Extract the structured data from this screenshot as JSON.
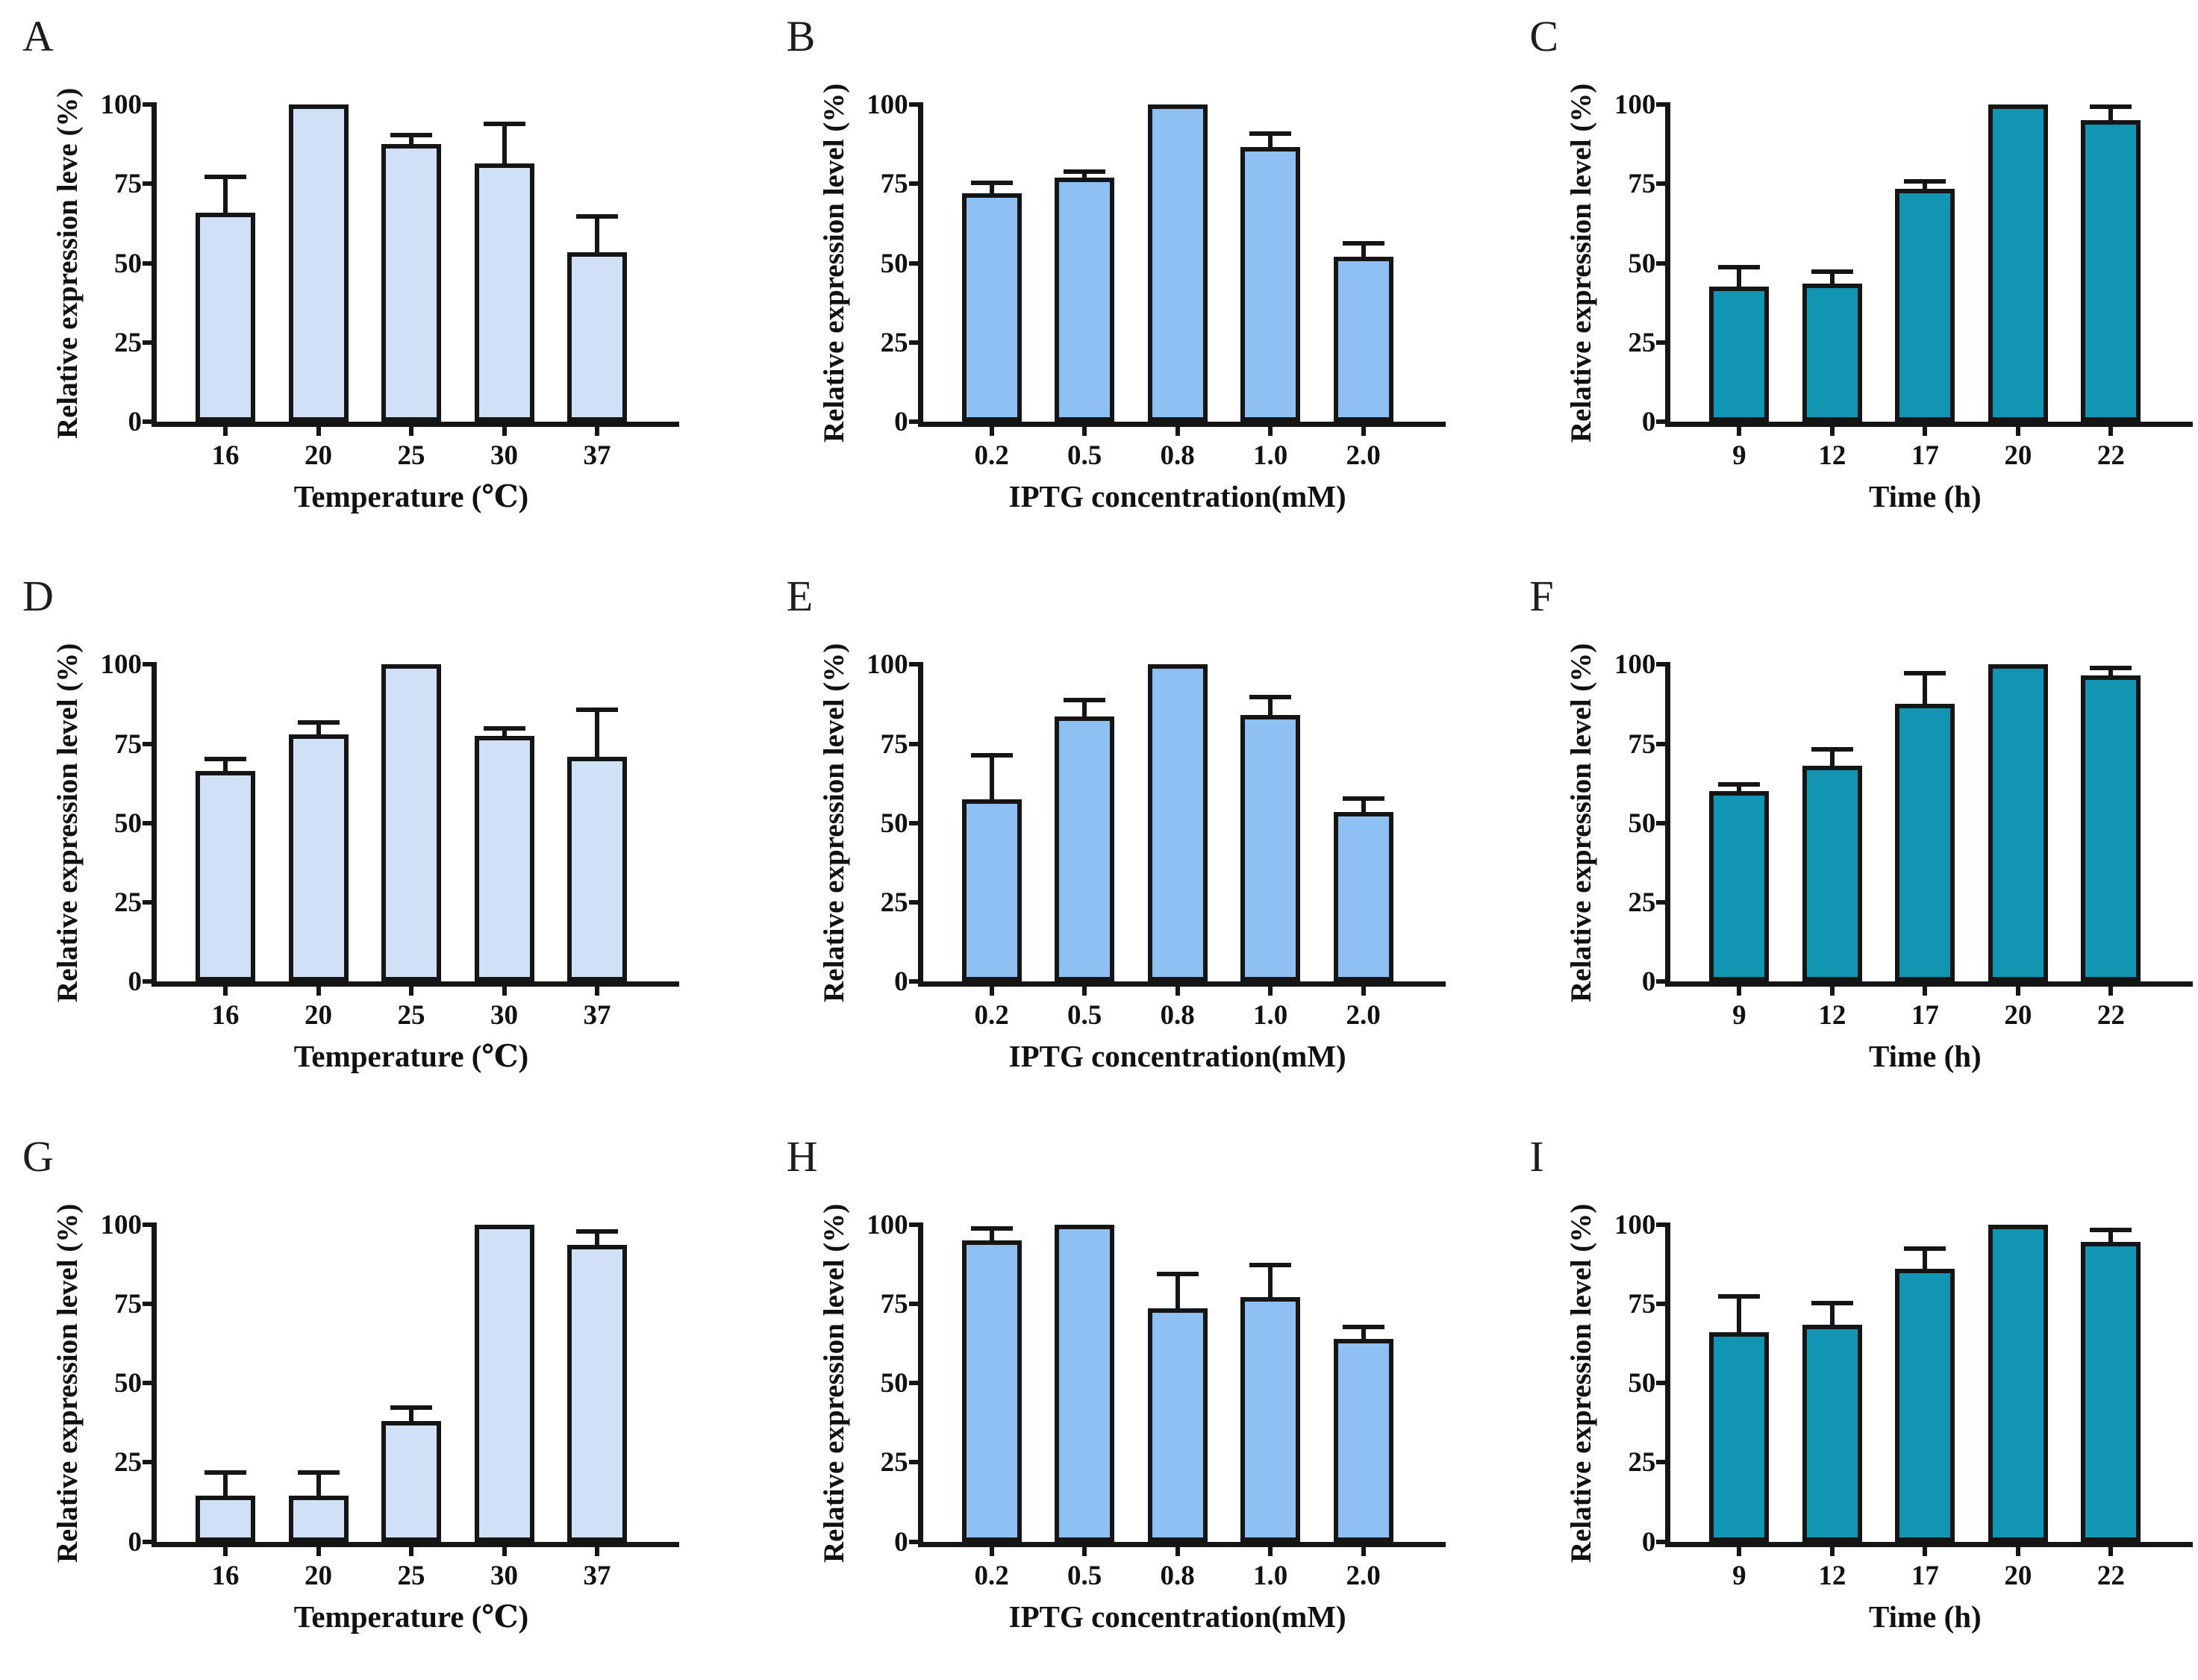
{
  "figure": {
    "rows": 3,
    "cols": 3,
    "panel_letters": [
      "A",
      "B",
      "C",
      "D",
      "E",
      "F",
      "G",
      "H",
      "I"
    ]
  },
  "colors": {
    "bar_light_blue": "#cfe0f7",
    "bar_blue": "#8ec0f4",
    "bar_teal": "#1295b3",
    "axis_and_outline": "#151515",
    "background": "#ffffff"
  },
  "chart_data": [
    {
      "type": "bar",
      "panel_label": "A",
      "ylabel": "Relative expression leve (%)",
      "xlabel": "Temperature (℃)",
      "categories": [
        "16",
        "20",
        "25",
        "30",
        "37"
      ],
      "values": [
        66,
        100,
        87.5,
        81.5,
        53.5
      ],
      "errors": [
        12,
        0,
        3.5,
        13,
        12
      ],
      "ylim": [
        0,
        100
      ],
      "yticks": [
        0,
        25,
        50,
        75,
        100
      ],
      "grid": false,
      "legend": null,
      "bar_color": "#cfe0f7",
      "bar_border": "#151515"
    },
    {
      "type": "bar",
      "panel_label": "B",
      "ylabel": "Relative expression level (%)",
      "xlabel": "IPTG concentration(mM)",
      "categories": [
        "0.2",
        "0.5",
        "0.8",
        "1.0",
        "2.0"
      ],
      "values": [
        72,
        77,
        100,
        86.5,
        52
      ],
      "errors": [
        4,
        2.5,
        0,
        5,
        5
      ],
      "ylim": [
        0,
        100
      ],
      "yticks": [
        0,
        25,
        50,
        75,
        100
      ],
      "grid": false,
      "legend": null,
      "bar_color": "#8ec0f4",
      "bar_border": "#151515"
    },
    {
      "type": "bar",
      "panel_label": "C",
      "ylabel": "Relative expression level (%)",
      "xlabel": "Time (h)",
      "categories": [
        "9",
        "12",
        "17",
        "20",
        "22"
      ],
      "values": [
        42.5,
        43.5,
        73.5,
        100,
        95
      ],
      "errors": [
        7,
        4.5,
        3,
        0,
        5
      ],
      "ylim": [
        0,
        100
      ],
      "yticks": [
        0,
        25,
        50,
        75,
        100
      ],
      "grid": false,
      "legend": null,
      "bar_color": "#1295b3",
      "bar_border": "#151515"
    },
    {
      "type": "bar",
      "panel_label": "D",
      "ylabel": "Relative expression level (%)",
      "xlabel": "Temperature (℃)",
      "categories": [
        "16",
        "20",
        "25",
        "30",
        "37"
      ],
      "values": [
        66.5,
        78,
        100,
        77.5,
        71
      ],
      "errors": [
        4.5,
        4.5,
        0,
        3,
        15.5
      ],
      "ylim": [
        0,
        100
      ],
      "yticks": [
        0,
        25,
        50,
        75,
        100
      ],
      "grid": false,
      "legend": null,
      "bar_color": "#cfe0f7",
      "bar_border": "#151515"
    },
    {
      "type": "bar",
      "panel_label": "E",
      "ylabel": "Relative expression level (%)",
      "xlabel": "IPTG concentration(mM)",
      "categories": [
        "0.2",
        "0.5",
        "0.8",
        "1.0",
        "2.0"
      ],
      "values": [
        57.5,
        83.5,
        100,
        84,
        53.5
      ],
      "errors": [
        14.5,
        6,
        0,
        6.5,
        5
      ],
      "ylim": [
        0,
        100
      ],
      "yticks": [
        0,
        25,
        50,
        75,
        100
      ],
      "grid": false,
      "legend": null,
      "bar_color": "#8ec0f4",
      "bar_border": "#151515"
    },
    {
      "type": "bar",
      "panel_label": "F",
      "ylabel": "Relative expression level (%)",
      "xlabel": "Time (h)",
      "categories": [
        "9",
        "12",
        "17",
        "20",
        "22"
      ],
      "values": [
        60,
        68,
        87.5,
        100,
        96.5
      ],
      "errors": [
        3,
        6,
        10.5,
        0,
        3
      ],
      "ylim": [
        0,
        100
      ],
      "yticks": [
        0,
        25,
        50,
        75,
        100
      ],
      "grid": false,
      "legend": null,
      "bar_color": "#1295b3",
      "bar_border": "#151515"
    },
    {
      "type": "bar",
      "panel_label": "G",
      "ylabel": "Relative expression level (%)",
      "xlabel": "Temperature (℃)",
      "categories": [
        "16",
        "20",
        "25",
        "30",
        "37"
      ],
      "values": [
        14.5,
        14.5,
        38,
        100,
        93.5
      ],
      "errors": [
        8,
        8,
        5,
        0,
        5
      ],
      "ylim": [
        0,
        100
      ],
      "yticks": [
        0,
        25,
        50,
        75,
        100
      ],
      "grid": false,
      "legend": null,
      "bar_color": "#cfe0f7",
      "bar_border": "#151515"
    },
    {
      "type": "bar",
      "panel_label": "H",
      "ylabel": "Relative expression level (%)",
      "xlabel": "IPTG concentration(mM)",
      "categories": [
        "0.2",
        "0.5",
        "0.8",
        "1.0",
        "2.0"
      ],
      "values": [
        95,
        100,
        73.5,
        77,
        64
      ],
      "errors": [
        4.5,
        0,
        11.5,
        11,
        4.5
      ],
      "ylim": [
        0,
        100
      ],
      "yticks": [
        0,
        25,
        50,
        75,
        100
      ],
      "grid": false,
      "legend": null,
      "bar_color": "#8ec0f4",
      "bar_border": "#151515"
    },
    {
      "type": "bar",
      "panel_label": "I",
      "ylabel": "Relative expression level (%)",
      "xlabel": "Time (h)",
      "categories": [
        "9",
        "12",
        "17",
        "20",
        "22"
      ],
      "values": [
        66,
        68.5,
        86,
        100,
        94.5
      ],
      "errors": [
        12,
        7.5,
        7,
        0,
        4.5
      ],
      "ylim": [
        0,
        100
      ],
      "yticks": [
        0,
        25,
        50,
        75,
        100
      ],
      "grid": false,
      "legend": null,
      "bar_color": "#1295b3",
      "bar_border": "#151515"
    }
  ]
}
